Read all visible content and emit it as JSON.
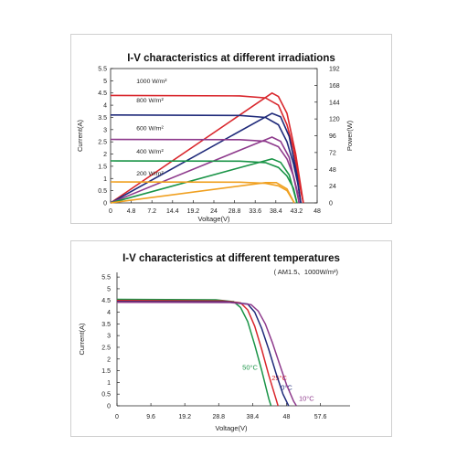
{
  "chart_data": [
    {
      "type": "line",
      "title": "I-V characteristics at different irradiations",
      "xlabel": "Voltage(V)",
      "ylabel": "Current(A)",
      "y2label": "Power(W)",
      "xlim": [
        0,
        48
      ],
      "ylim": [
        0,
        5.5
      ],
      "y2lim": [
        0,
        192
      ],
      "x_ticks": [
        "0",
        "4.8",
        "7.2",
        "14.4",
        "19.2",
        "24",
        "28.8",
        "33.6",
        "38.4",
        "43.2",
        "48"
      ],
      "y_ticks": [
        "0",
        "0.5",
        "1",
        "1.5",
        "2",
        "2.5",
        "3",
        "3.5",
        "4",
        "4.5",
        "5",
        "5.5"
      ],
      "y2_ticks": [
        "0",
        "24",
        "48",
        "72",
        "96",
        "120",
        "144",
        "168",
        "192"
      ],
      "grid": false,
      "series": [
        {
          "name": "1000 W/m²",
          "color": "#d9262c",
          "iv": [
            [
              0,
              4.4
            ],
            [
              30,
              4.38
            ],
            [
              36,
              4.3
            ],
            [
              39,
              4.0
            ],
            [
              41,
              3.2
            ],
            [
              42.5,
              2.2
            ],
            [
              43.5,
              1.2
            ],
            [
              44.3,
              0.4
            ],
            [
              44.8,
              0
            ]
          ],
          "pv": [
            [
              0,
              0
            ],
            [
              37.5,
              157
            ],
            [
              39,
              152
            ],
            [
              41,
              128
            ],
            [
              43,
              70
            ],
            [
              44.8,
              0
            ]
          ]
        },
        {
          "name": "800 W/m²",
          "color": "#1f2a7a",
          "iv": [
            [
              0,
              3.6
            ],
            [
              30,
              3.58
            ],
            [
              36,
              3.5
            ],
            [
              39,
              3.2
            ],
            [
              41,
              2.5
            ],
            [
              42.5,
              1.6
            ],
            [
              43.5,
              0.8
            ],
            [
              44.2,
              0
            ]
          ],
          "pv": [
            [
              0,
              0
            ],
            [
              37.5,
              128
            ],
            [
              39.5,
              123
            ],
            [
              41.5,
              95
            ],
            [
              43.3,
              40
            ],
            [
              44.2,
              0
            ]
          ]
        },
        {
          "name": "600 W/m²",
          "color": "#8e3a8c",
          "iv": [
            [
              0,
              2.6
            ],
            [
              30,
              2.59
            ],
            [
              36,
              2.52
            ],
            [
              39,
              2.3
            ],
            [
              41,
              1.8
            ],
            [
              42.5,
              1.1
            ],
            [
              43.5,
              0.4
            ],
            [
              43.8,
              0
            ]
          ],
          "pv": [
            [
              0,
              0
            ],
            [
              37.5,
              94
            ],
            [
              39.5,
              88
            ],
            [
              41.5,
              65
            ],
            [
              43.2,
              18
            ],
            [
              43.8,
              0
            ]
          ]
        },
        {
          "name": "400 W/m²",
          "color": "#1a9447",
          "iv": [
            [
              0,
              1.72
            ],
            [
              30,
              1.71
            ],
            [
              36,
              1.65
            ],
            [
              39,
              1.45
            ],
            [
              41,
              1.1
            ],
            [
              42.5,
              0.6
            ],
            [
              43.3,
              0
            ]
          ],
          "pv": [
            [
              0,
              0
            ],
            [
              37.5,
              63
            ],
            [
              39.5,
              58
            ],
            [
              41.5,
              40
            ],
            [
              43.3,
              0
            ]
          ]
        },
        {
          "name": "200 W/m²",
          "color": "#f0a020",
          "iv": [
            [
              0,
              0.86
            ],
            [
              30,
              0.85
            ],
            [
              36,
              0.8
            ],
            [
              39,
              0.7
            ],
            [
              41,
              0.5
            ],
            [
              42.7,
              0
            ]
          ],
          "pv": [
            [
              0,
              0
            ],
            [
              36,
              29
            ],
            [
              38.5,
              29
            ],
            [
              41,
              20
            ],
            [
              42.7,
              0
            ]
          ]
        }
      ]
    },
    {
      "type": "line",
      "title": "I-V characteristics at different temperatures",
      "subtitle": "( AM1.5、1000W/m²)",
      "xlabel": "Voltage(V)",
      "ylabel": "Current(A)",
      "xlim": [
        0,
        66
      ],
      "ylim": [
        0,
        5.7
      ],
      "x_ticks": [
        "0",
        "9.6",
        "19.2",
        "28.8",
        "38.4",
        "48",
        "57.6"
      ],
      "y_ticks": [
        "0",
        "0.5",
        "1",
        "1.5",
        "2",
        "2.5",
        "3",
        "3.5",
        "4",
        "4.5",
        "5",
        "5.5"
      ],
      "grid": false,
      "series": [
        {
          "name": "50°C",
          "color": "#1a9447",
          "iv": [
            [
              0,
              4.55
            ],
            [
              28,
              4.53
            ],
            [
              33,
              4.45
            ],
            [
              35,
              4.2
            ],
            [
              37,
              3.6
            ],
            [
              39,
              2.6
            ],
            [
              41,
              1.5
            ],
            [
              43,
              0.3
            ],
            [
              43.6,
              0
            ]
          ]
        },
        {
          "name": "25°C",
          "color": "#d9262c",
          "iv": [
            [
              0,
              4.5
            ],
            [
              30,
              4.48
            ],
            [
              35,
              4.4
            ],
            [
              37,
              4.1
            ],
            [
              39,
              3.4
            ],
            [
              41,
              2.4
            ],
            [
              43,
              1.3
            ],
            [
              45,
              0.3
            ],
            [
              45.6,
              0
            ]
          ]
        },
        {
          "name": "0°C",
          "color": "#1f2a7a",
          "iv": [
            [
              0,
              4.45
            ],
            [
              31,
              4.44
            ],
            [
              37,
              4.35
            ],
            [
              39,
              4.0
            ],
            [
              41,
              3.3
            ],
            [
              43,
              2.4
            ],
            [
              45,
              1.4
            ],
            [
              47,
              0.5
            ],
            [
              48.6,
              0
            ]
          ]
        },
        {
          "name": "10°C",
          "color": "#8e3a8c",
          "iv": [
            [
              0,
              4.42
            ],
            [
              32,
              4.41
            ],
            [
              38,
              4.32
            ],
            [
              40,
              4.05
            ],
            [
              42,
              3.5
            ],
            [
              44,
              2.7
            ],
            [
              46,
              1.8
            ],
            [
              48,
              0.9
            ],
            [
              50,
              0.2
            ],
            [
              50.8,
              0
            ]
          ]
        }
      ]
    }
  ]
}
